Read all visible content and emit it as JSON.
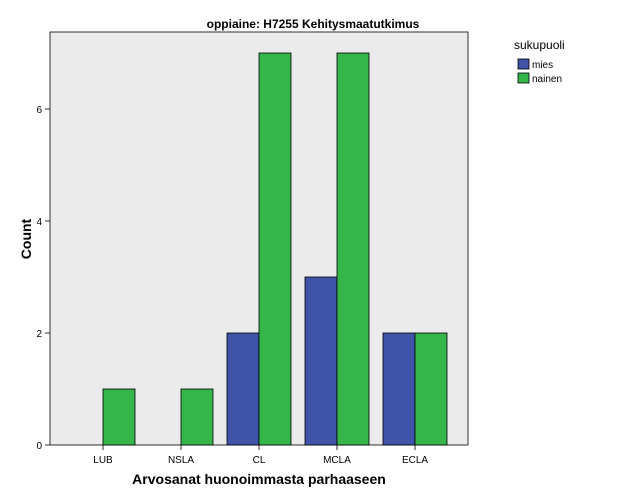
{
  "chart_data": {
    "type": "bar",
    "title": "oppiaine: H7255 Kehitysmaatutkimus",
    "xlabel": "Arvosanat huonoimmasta parhaaseen",
    "ylabel": "Count",
    "categories": [
      "LUB",
      "NSLA",
      "CL",
      "MCLA",
      "ECLA"
    ],
    "series": [
      {
        "name": "mies",
        "values": [
          0,
          0,
          2,
          3,
          2
        ],
        "color": "#3f54a8"
      },
      {
        "name": "nainen",
        "values": [
          1,
          1,
          7,
          7,
          2
        ],
        "color": "#36b54a"
      }
    ],
    "ylim": [
      0,
      7.5
    ],
    "yticks": [
      "0",
      "2",
      "4",
      "6"
    ],
    "grid": false,
    "legend": {
      "title": "sukupuoli",
      "position": "top-right-outside"
    },
    "plot_background": "#ebebeb"
  }
}
